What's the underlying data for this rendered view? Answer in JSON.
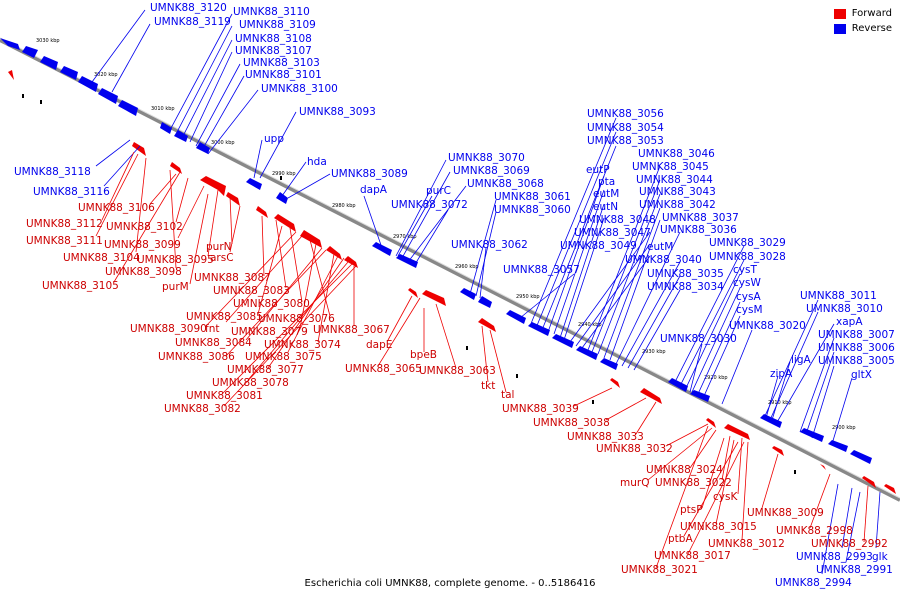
{
  "legend": {
    "forward_label": "Forward",
    "reverse_label": "Reverse",
    "forward_color": "#ee0000",
    "reverse_color": "#0000ee"
  },
  "caption": "Escherichia coli UMNK88, complete genome. - 0..5186416",
  "ticks": [
    "3030 kbp",
    "3020 kbp",
    "3010 kbp",
    "3000 kbp",
    "2990 kbp",
    "2980 kbp",
    "2970 kbp",
    "2960 kbp",
    "2950 kbp",
    "2940 kbp",
    "2930 kbp",
    "2920 kbp",
    "2910 kbp",
    "2900 kbp"
  ],
  "blue_labels": [
    "UMNK88_3120",
    "UMNK88_3119",
    "UMNK88_3110",
    "UMNK88_3109",
    "UMNK88_3108",
    "UMNK88_3107",
    "UMNK88_3103",
    "UMNK88_3101",
    "UMNK88_3100",
    "UMNK88_3093",
    "upp",
    "hda",
    "UMNK88_3089",
    "dapA",
    "UMNK88_3070",
    "UMNK88_3069",
    "UMNK88_3068",
    "purC",
    "UMNK88_3072",
    "UMNK88_3061",
    "UMNK88_3060",
    "UMNK88_3062",
    "UMNK88_3057",
    "UMNK88_3056",
    "UMNK88_3054",
    "UMNK88_3053",
    "eutP",
    "pta",
    "eutM",
    "eutN",
    "UMNK88_3046",
    "UMNK88_3045",
    "UMNK88_3044",
    "UMNK88_3043",
    "UMNK88_3042",
    "UMNK88_3048",
    "UMNK88_3047",
    "UMNK88_3049",
    "UMNK88_3037",
    "UMNK88_3036",
    "eutM",
    "UMNK88_3040",
    "UMNK88_3035",
    "UMNK88_3034",
    "UMNK88_3029",
    "UMNK88_3028",
    "cysT",
    "cysW",
    "cysA",
    "cysM",
    "UMNK88_3020",
    "UMNK88_3030",
    "UMNK88_3011",
    "UMNK88_3010",
    "xapA",
    "UMNK88_3007",
    "UMNK88_3006",
    "UMNK88_3005",
    "ligA",
    "zipA",
    "gltX",
    "UMNK88_2993",
    "glk",
    "UMNK88_2991",
    "UMNK88_2994",
    "UMNK88_3118",
    "UMNK88_3116"
  ],
  "red_labels": [
    "UMNK88_3106",
    "UMNK88_3112",
    "UMNK88_3102",
    "UMNK88_3111",
    "UMNK88_3099",
    "purN",
    "UMNK88_3104",
    "UMNK88_3095",
    "arsC",
    "UMNK88_3098",
    "purM",
    "UMNK88_3105",
    "UMNK88_3087",
    "UMNK88_3083",
    "UMNK88_3080",
    "UMNK88_3085",
    "UMNK88_3076",
    "UMNK88_3090",
    "fnt",
    "UMNK88_3079",
    "UMNK88_3067",
    "UMNK88_3084",
    "UMNK88_3074",
    "dapE",
    "UMNK88_3086",
    "UMNK88_3075",
    "UMNK88_3077",
    "UMNK88_3065",
    "bpeB",
    "UMNK88_3063",
    "UMNK88_3078",
    "tkt",
    "UMNK88_3081",
    "tal",
    "UMNK88_3082",
    "UMNK88_3039",
    "UMNK88_3038",
    "UMNK88_3033",
    "UMNK88_3032",
    "UMNK88_3024",
    "murQ",
    "UMNK88_3022",
    "cysK",
    "ptsP",
    "UMNK88_3009",
    "UMNK88_3015",
    "ptbA",
    "UMNK88_3012",
    "UMNK88_3017",
    "UMNK88_3021",
    "UMNK88_2998",
    "UMNK88_2992"
  ]
}
